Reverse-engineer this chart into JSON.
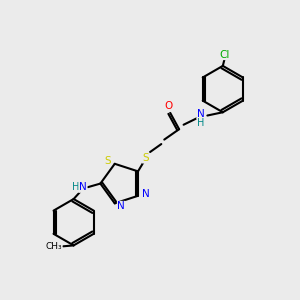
{
  "bg_color": "#ebebeb",
  "bond_color": "#000000",
  "atom_colors": {
    "N": "#0000ff",
    "O": "#ff0000",
    "S": "#cccc00",
    "Cl": "#00aa00",
    "H": "#008888",
    "C": "#000000"
  }
}
